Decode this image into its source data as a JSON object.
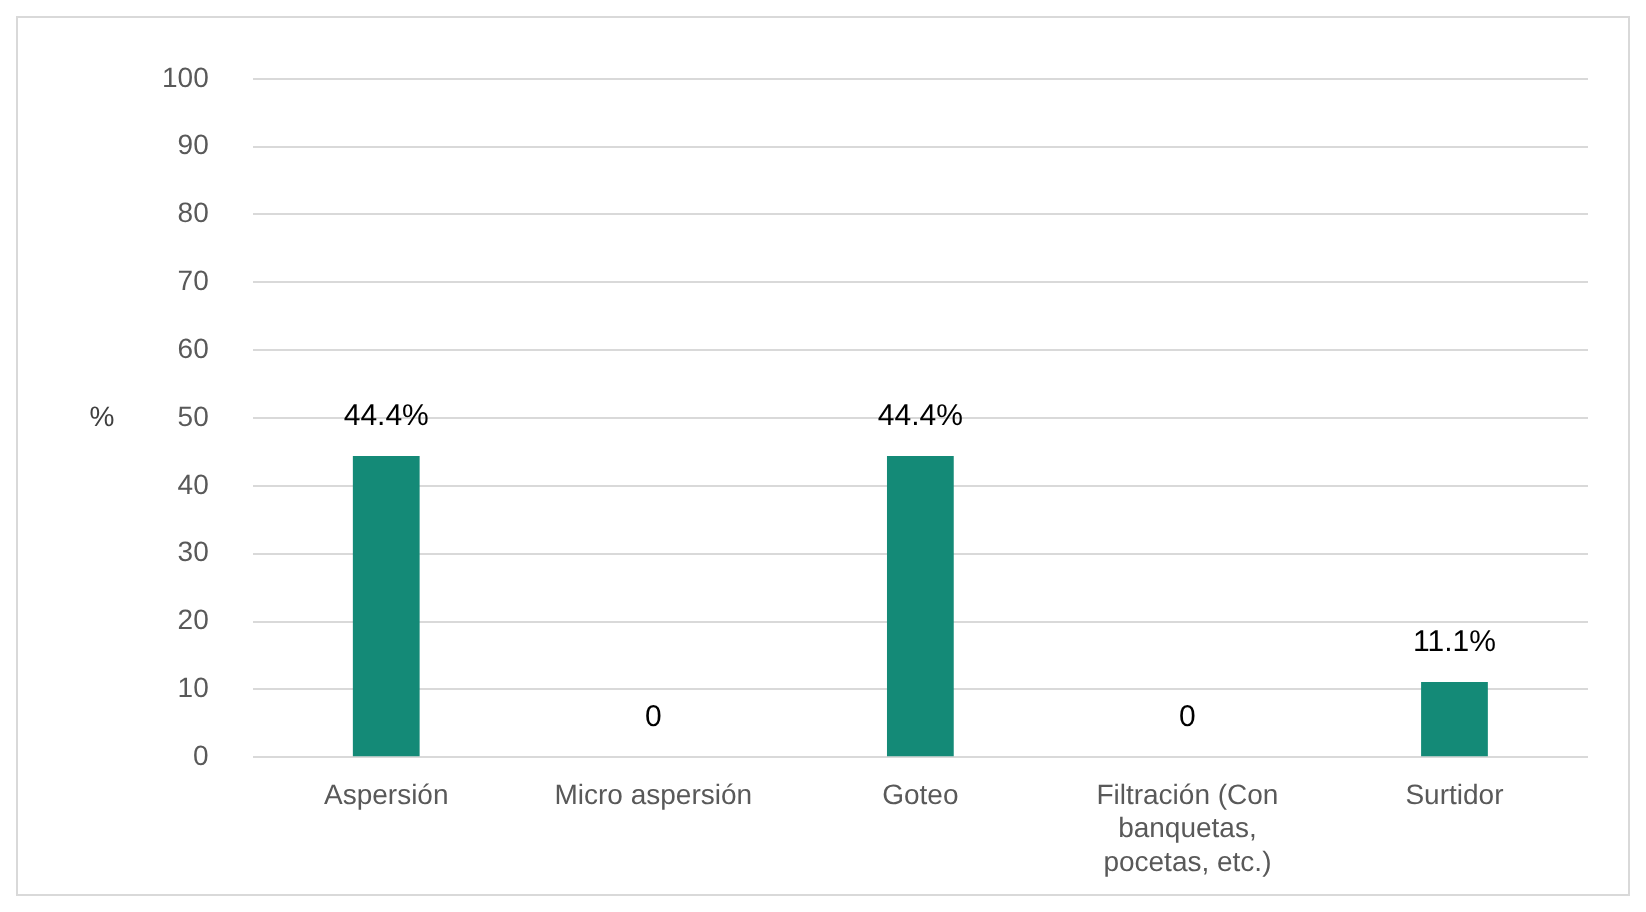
{
  "chart_data": {
    "type": "bar",
    "ylabel": "%",
    "categories": [
      "Aspersión",
      "Micro aspersión",
      "Goteo",
      "Filtración (Con banquetas, pocetas, etc.)",
      "Surtidor"
    ],
    "values": [
      44.4,
      0,
      44.4,
      0,
      11.1
    ],
    "value_labels": [
      "44.4%",
      "0",
      "44.4%",
      "0",
      "11.1%"
    ],
    "color": "#148a77",
    "ylim": [
      0,
      100
    ],
    "yticks": [
      0,
      10,
      20,
      30,
      40,
      50,
      60,
      70,
      80,
      90,
      100
    ],
    "grid": "y",
    "legend": false
  }
}
